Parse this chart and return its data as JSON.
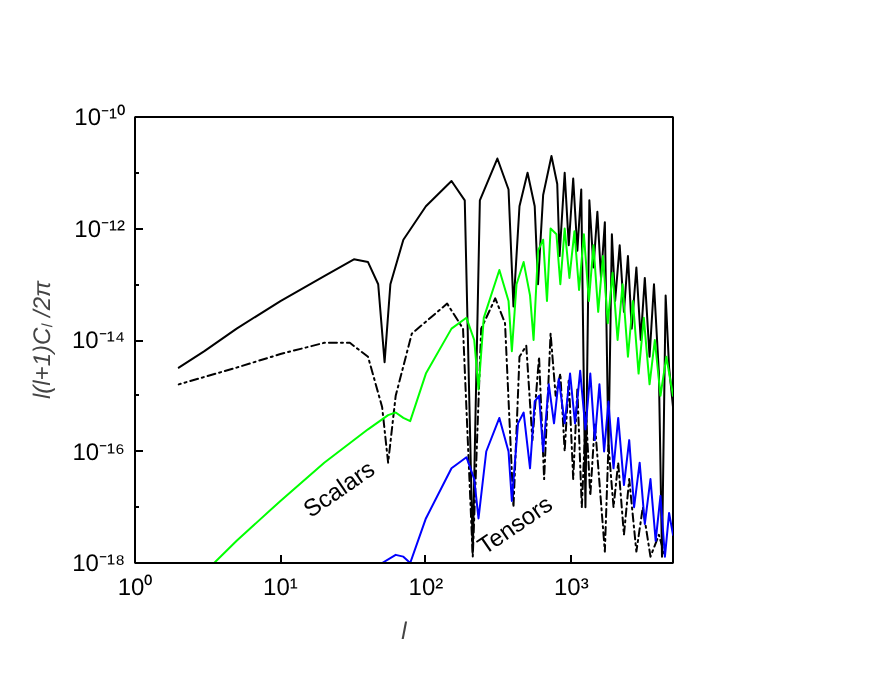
{
  "chart_data": {
    "type": "line",
    "xlabel": "l",
    "ylabel": "l(l+1)Cₗ /2π",
    "log": "xy",
    "grid": false,
    "xlim": [
      1,
      5000
    ],
    "ylim": [
      1e-18,
      1e-10
    ],
    "xticks": [
      {
        "value": 1,
        "label": "10⁰"
      },
      {
        "value": 10,
        "label": "10¹"
      },
      {
        "value": 100,
        "label": "10²"
      },
      {
        "value": 1000,
        "label": "10³"
      }
    ],
    "yticks": [
      {
        "value": 1e-18,
        "label": "10⁻¹⁸"
      },
      {
        "value": 1e-17,
        "label": null
      },
      {
        "value": 1e-16,
        "label": "10⁻¹⁶"
      },
      {
        "value": 1e-15,
        "label": null
      },
      {
        "value": 1e-14,
        "label": "10⁻¹⁴"
      },
      {
        "value": 1e-13,
        "label": null
      },
      {
        "value": 1e-12,
        "label": "10⁻¹²"
      },
      {
        "value": 1e-11,
        "label": null
      },
      {
        "value": 1e-10,
        "label": "10⁻¹⁰"
      }
    ],
    "annotations": [
      "Scalars",
      "Tensors"
    ],
    "series": [
      {
        "color": "#000000",
        "line_style": "solid",
        "x": [
          2,
          3,
          5,
          10,
          20,
          32,
          40,
          47,
          52,
          57,
          70,
          100,
          150,
          185,
          210,
          235,
          310,
          370,
          400,
          440,
          500,
          560,
          590,
          640,
          730,
          800,
          830,
          900,
          960,
          1030,
          1100,
          1170,
          1250,
          1330,
          1420,
          1510,
          1600,
          1700,
          1800,
          1900,
          2000,
          2150,
          2300,
          2450,
          2600,
          2800,
          3000,
          3200,
          3450,
          3700,
          4000,
          4200,
          4450,
          4700,
          5000
        ],
        "values": [
          3.2e-15,
          6.3e-15,
          1.6e-14,
          5e-14,
          1.4e-13,
          2.8e-13,
          2.5e-13,
          1e-13,
          4e-15,
          1e-13,
          6.3e-13,
          2.5e-12,
          7.1e-12,
          3.2e-12,
          1.6e-18,
          3.2e-12,
          1.8e-11,
          5e-12,
          4e-14,
          2.5e-12,
          1e-11,
          2.5e-12,
          1e-13,
          4e-12,
          2e-11,
          6.3e-12,
          3.2e-13,
          1e-11,
          5e-13,
          7.9e-12,
          4e-13,
          5e-12,
          1e-17,
          3.2e-12,
          2e-13,
          2e-12,
          1.3e-13,
          1.3e-12,
          1e-16,
          7.9e-13,
          5e-14,
          5e-13,
          3.2e-14,
          3.2e-13,
          1.6e-14,
          2e-13,
          1e-14,
          1.3e-13,
          5e-15,
          1e-13,
          2.5e-15,
          1.3e-18,
          6.3e-14,
          3.2e-15,
          6.3e-16
        ]
      },
      {
        "color": "#000000",
        "line_style": "dashdot",
        "x": [
          2,
          5,
          10,
          20,
          30,
          40,
          50,
          55,
          62,
          80,
          140,
          180,
          210,
          240,
          300,
          350,
          400,
          440,
          490,
          540,
          600,
          650,
          720,
          780,
          840,
          900,
          960,
          1030,
          1100,
          1180,
          1260,
          1350,
          1450,
          1700,
          1800,
          1950,
          2100,
          2300,
          2500,
          2800,
          3100,
          3500,
          4000,
          4400
        ],
        "values": [
          1.6e-15,
          3.2e-15,
          5.6e-15,
          8.9e-15,
          8.9e-15,
          5e-15,
          6.3e-16,
          6.3e-17,
          1e-15,
          1.3e-14,
          4.5e-14,
          1.6e-14,
          1.3e-18,
          1.6e-14,
          5.6e-14,
          2e-14,
          1e-17,
          5e-15,
          7.9e-15,
          1.6e-16,
          5e-15,
          3.2e-17,
          1.3e-14,
          1e-15,
          2.5e-15,
          1e-16,
          2e-15,
          3.2e-17,
          1.3e-15,
          1e-17,
          5e-16,
          1.6e-17,
          3.2e-16,
          1.6e-18,
          1.3e-16,
          1e-17,
          6.3e-17,
          3.2e-18,
          3.2e-17,
          1.6e-18,
          1e-17,
          1.3e-18,
          3.2e-18,
          1.3e-18
        ]
      },
      {
        "color": "#00ff00",
        "line_style": "solid",
        "x": [
          3.5,
          5,
          10,
          20,
          40,
          55,
          62,
          70,
          78,
          100,
          150,
          190,
          215,
          230,
          250,
          320,
          370,
          390,
          420,
          470,
          520,
          550,
          590,
          640,
          680,
          720,
          790,
          840,
          900,
          970,
          1050,
          1130,
          1220,
          1320,
          1420,
          1530,
          1650,
          1780,
          1920,
          2080,
          2250,
          2450,
          2650,
          2900,
          3150,
          3450,
          3750,
          4100,
          4500,
          5000
        ],
        "values": [
          1e-18,
          2.5e-18,
          1.3e-17,
          6.3e-17,
          2.5e-16,
          4.5e-16,
          5e-16,
          4e-16,
          3.5e-16,
          2.5e-15,
          1.6e-14,
          2.5e-14,
          1e-14,
          1.3e-15,
          2.5e-14,
          1.8e-13,
          5e-14,
          6.3e-15,
          1e-13,
          2.5e-13,
          6.3e-14,
          1e-14,
          4e-13,
          6.3e-13,
          5e-14,
          1e-12,
          7.9e-13,
          1e-13,
          1e-12,
          1.3e-13,
          8.9e-13,
          7.9e-14,
          7.9e-13,
          5e-14,
          5e-13,
          3.2e-14,
          3.2e-13,
          2e-14,
          1.6e-13,
          1e-14,
          1e-13,
          5e-15,
          5e-14,
          2.5e-15,
          2.5e-14,
          1.6e-15,
          1e-14,
          1e-15,
          5e-15,
          1e-15
        ]
      },
      {
        "color": "#0000ff",
        "line_style": "solid",
        "x": [
          50,
          62,
          70,
          78,
          100,
          150,
          190,
          215,
          230,
          260,
          320,
          370,
          390,
          430,
          470,
          520,
          560,
          600,
          640,
          700,
          760,
          820,
          900,
          980,
          1060,
          1150,
          1250,
          1350,
          1450,
          1560,
          1680,
          1800,
          1950,
          2100,
          2300,
          2500,
          2700,
          2950,
          3200,
          3500,
          3800,
          4100,
          4400,
          4700,
          5000
        ],
        "values": [
          1e-18,
          1.4e-18,
          1.3e-18,
          1e-18,
          6.3e-18,
          5e-17,
          7.9e-17,
          3.2e-17,
          6.3e-18,
          1e-16,
          4e-16,
          1e-16,
          1.3e-17,
          3.2e-16,
          5e-16,
          5e-17,
          7.9e-16,
          1e-15,
          1e-16,
          1.6e-15,
          3.2e-16,
          2e-15,
          3.2e-16,
          2.5e-15,
          3.2e-16,
          2.8e-15,
          2.5e-16,
          2.5e-15,
          1.6e-16,
          1.6e-15,
          1e-16,
          7.9e-16,
          5e-17,
          4e-16,
          2.5e-17,
          1.6e-16,
          1e-17,
          6.3e-17,
          5e-18,
          3.2e-17,
          2.5e-18,
          1.6e-17,
          1.3e-18,
          7.9e-18,
          3.2e-18
        ]
      }
    ]
  }
}
